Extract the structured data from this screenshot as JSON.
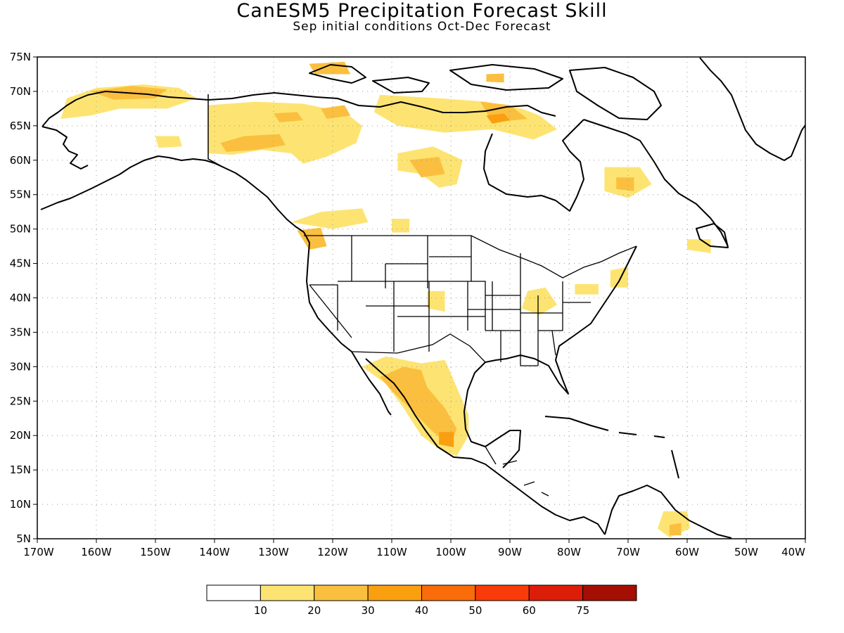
{
  "title": "CanESM5 Precipitation Forecast Skill",
  "subtitle": "Sep initial conditions  Oct-Dec Forecast",
  "axes": {
    "lat_ticks": [
      "5N",
      "10N",
      "15N",
      "20N",
      "25N",
      "30N",
      "35N",
      "40N",
      "45N",
      "50N",
      "55N",
      "60N",
      "65N",
      "70N",
      "75N"
    ],
    "lon_ticks": [
      "170W",
      "160W",
      "150W",
      "140W",
      "130W",
      "120W",
      "110W",
      "100W",
      "90W",
      "80W",
      "70W",
      "60W",
      "50W",
      "40W"
    ],
    "lat_range": [
      5,
      75
    ],
    "lon_range": [
      -170,
      -40
    ]
  },
  "colorbar": {
    "labels": [
      "10",
      "20",
      "30",
      "40",
      "50",
      "60",
      "75"
    ],
    "colors": [
      "#ffffff",
      "#fde472",
      "#fbbf3f",
      "#fa9f10",
      "#f96c09",
      "#f83b08",
      "#dc1d07",
      "#a50e02"
    ]
  },
  "skill_regions": [
    {
      "level": 1,
      "points": [
        [
          -165,
          69
        ],
        [
          -160,
          70.5
        ],
        [
          -152,
          71
        ],
        [
          -146,
          70.5
        ],
        [
          -143,
          69
        ],
        [
          -148,
          67.5
        ],
        [
          -156,
          67.5
        ],
        [
          -161,
          66.5
        ],
        [
          -166,
          66
        ]
      ]
    },
    {
      "level": 2,
      "points": [
        [
          -161,
          70
        ],
        [
          -154,
          70.8
        ],
        [
          -148,
          70.3
        ],
        [
          -150,
          69
        ],
        [
          -157,
          68.8
        ]
      ]
    },
    {
      "level": 1,
      "points": [
        [
          -150,
          63.5
        ],
        [
          -146,
          63.5
        ],
        [
          -145.5,
          62
        ],
        [
          -149.5,
          61.8
        ]
      ]
    },
    {
      "level": 1,
      "points": [
        [
          -141,
          68
        ],
        [
          -133,
          68.5
        ],
        [
          -125,
          68.2
        ],
        [
          -118,
          67
        ],
        [
          -115,
          65
        ],
        [
          -116,
          62.5
        ],
        [
          -121,
          60.5
        ],
        [
          -125,
          59.5
        ],
        [
          -127,
          61
        ],
        [
          -132,
          61.5
        ],
        [
          -137,
          60.8
        ],
        [
          -141,
          61
        ]
      ]
    },
    {
      "level": 2,
      "points": [
        [
          -139,
          62.5
        ],
        [
          -135,
          63.5
        ],
        [
          -129,
          63.8
        ],
        [
          -128,
          62.2
        ],
        [
          -133,
          61.5
        ],
        [
          -138,
          61.2
        ]
      ]
    },
    {
      "level": 2,
      "points": [
        [
          -130,
          66.8
        ],
        [
          -126,
          67
        ],
        [
          -125,
          65.8
        ],
        [
          -129,
          65.5
        ]
      ]
    },
    {
      "level": 2,
      "points": [
        [
          -122,
          67.5
        ],
        [
          -118,
          68
        ],
        [
          -117,
          66.5
        ],
        [
          -121,
          66
        ]
      ]
    },
    {
      "level": 2,
      "points": [
        [
          -124,
          74
        ],
        [
          -118,
          74.3
        ],
        [
          -117,
          72.5
        ],
        [
          -123,
          72.5
        ]
      ]
    },
    {
      "level": 1,
      "points": [
        [
          -112,
          69.5
        ],
        [
          -102,
          69
        ],
        [
          -94,
          68.5
        ],
        [
          -88,
          67.5
        ],
        [
          -85,
          66.5
        ],
        [
          -82,
          64.5
        ],
        [
          -86,
          63
        ],
        [
          -93,
          64.5
        ],
        [
          -101,
          64
        ],
        [
          -109,
          65
        ],
        [
          -113,
          67
        ]
      ]
    },
    {
      "level": 2,
      "points": [
        [
          -95,
          68.5
        ],
        [
          -90,
          68
        ],
        [
          -87,
          66
        ],
        [
          -93,
          65.5
        ]
      ]
    },
    {
      "level": 3,
      "points": [
        [
          -94,
          66.5
        ],
        [
          -91,
          66.8
        ],
        [
          -90,
          65.8
        ],
        [
          -93,
          65.3
        ]
      ]
    },
    {
      "level": 2,
      "points": [
        [
          -94,
          72.5
        ],
        [
          -91,
          72.6
        ],
        [
          -91,
          71.3
        ],
        [
          -94,
          71.4
        ]
      ]
    },
    {
      "level": 1,
      "points": [
        [
          -109,
          61
        ],
        [
          -103,
          62
        ],
        [
          -98,
          60
        ],
        [
          -99,
          56.5
        ],
        [
          -102,
          56
        ],
        [
          -105,
          58
        ],
        [
          -109,
          58.5
        ]
      ]
    },
    {
      "level": 2,
      "points": [
        [
          -107,
          60
        ],
        [
          -102,
          60.5
        ],
        [
          -101,
          58
        ],
        [
          -105,
          57.5
        ]
      ]
    },
    {
      "level": 1,
      "points": [
        [
          -122,
          52.5
        ],
        [
          -115,
          53
        ],
        [
          -114,
          51
        ],
        [
          -120,
          50
        ],
        [
          -127,
          51
        ]
      ]
    },
    {
      "level": 2,
      "points": [
        [
          -126,
          49.8
        ],
        [
          -122,
          50.2
        ],
        [
          -121,
          47.5
        ],
        [
          -124,
          47
        ]
      ]
    },
    {
      "level": 1,
      "points": [
        [
          -110,
          51.5
        ],
        [
          -107,
          51.5
        ],
        [
          -107,
          49.5
        ],
        [
          -110,
          49.5
        ]
      ]
    },
    {
      "level": 1,
      "points": [
        [
          -74,
          59
        ],
        [
          -68,
          59
        ],
        [
          -66,
          56.5
        ],
        [
          -70,
          54.5
        ],
        [
          -74,
          55.5
        ]
      ]
    },
    {
      "level": 2,
      "points": [
        [
          -72,
          57.5
        ],
        [
          -69,
          57.5
        ],
        [
          -69,
          55.5
        ],
        [
          -72,
          55.8
        ]
      ]
    },
    {
      "level": 1,
      "points": [
        [
          -60,
          48.5
        ],
        [
          -56,
          48.5
        ],
        [
          -56,
          46.5
        ],
        [
          -60,
          47
        ]
      ]
    },
    {
      "level": 1,
      "points": [
        [
          -87,
          41
        ],
        [
          -84,
          41.5
        ],
        [
          -82,
          39
        ],
        [
          -85,
          37.5
        ],
        [
          -88,
          38.5
        ]
      ]
    },
    {
      "level": 1,
      "points": [
        [
          -79,
          42
        ],
        [
          -75,
          42
        ],
        [
          -75,
          40.5
        ],
        [
          -79,
          40.5
        ]
      ]
    },
    {
      "level": 1,
      "points": [
        [
          -73,
          44
        ],
        [
          -70,
          44.5
        ],
        [
          -70,
          41.5
        ],
        [
          -73,
          41.5
        ]
      ]
    },
    {
      "level": 1,
      "points": [
        [
          -104,
          41
        ],
        [
          -101,
          41
        ],
        [
          -101,
          38
        ],
        [
          -104,
          38.5
        ]
      ]
    },
    {
      "level": 1,
      "points": [
        [
          -115,
          30
        ],
        [
          -111,
          31.5
        ],
        [
          -108,
          31
        ],
        [
          -105,
          30.5
        ],
        [
          -101,
          31
        ],
        [
          -99,
          27
        ],
        [
          -97,
          23
        ],
        [
          -97,
          20
        ],
        [
          -99,
          17
        ],
        [
          -102,
          18
        ],
        [
          -105,
          20
        ],
        [
          -108,
          24
        ],
        [
          -111,
          27.5
        ]
      ]
    },
    {
      "level": 2,
      "points": [
        [
          -112,
          28.5
        ],
        [
          -108,
          30
        ],
        [
          -105,
          29.5
        ],
        [
          -104,
          27
        ],
        [
          -101,
          24
        ],
        [
          -99,
          21
        ],
        [
          -100,
          18.5
        ],
        [
          -103,
          20.5
        ],
        [
          -107,
          24
        ],
        [
          -110,
          26.5
        ]
      ]
    },
    {
      "level": 3,
      "points": [
        [
          -102,
          20.5
        ],
        [
          -99.5,
          20.5
        ],
        [
          -99.5,
          18.3
        ],
        [
          -102,
          18.7
        ]
      ]
    },
    {
      "level": 1,
      "points": [
        [
          -64,
          9
        ],
        [
          -60,
          9
        ],
        [
          -59.5,
          6.5
        ],
        [
          -63,
          5.2
        ],
        [
          -65,
          6.5
        ]
      ]
    },
    {
      "level": 2,
      "points": [
        [
          -63,
          7
        ],
        [
          -61,
          7.3
        ],
        [
          -61,
          5.5
        ],
        [
          -63,
          5.5
        ]
      ]
    }
  ]
}
